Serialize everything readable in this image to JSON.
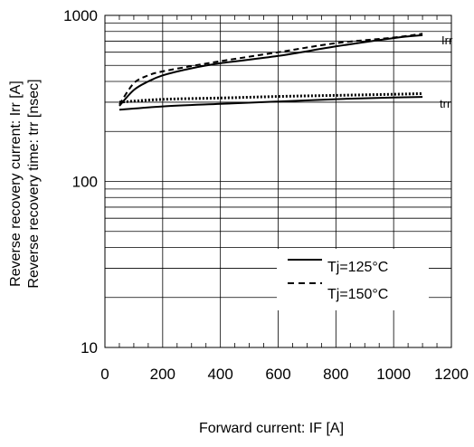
{
  "chart_data": {
    "type": "line",
    "xlabel": "Forward current: IF [A]",
    "ylabel_line1": "Reverse recovery current: Irr [A]",
    "ylabel_line2": "Reverse recovery time: trr [nsec]",
    "x_range": [
      0,
      1200
    ],
    "x_ticks": [
      0,
      200,
      400,
      600,
      800,
      1000,
      1200
    ],
    "x_tick_labels": [
      "0",
      "200",
      "400",
      "600",
      "800",
      "1000",
      "1200"
    ],
    "y_scale": "log",
    "y_range": [
      10,
      1000
    ],
    "y_ticks": [
      10,
      100,
      1000
    ],
    "y_tick_labels": [
      "10",
      "100",
      "1000"
    ],
    "grid": true,
    "legend_position": "lower-right",
    "legend": [
      {
        "label": "Tj=125°C",
        "style": "solid"
      },
      {
        "label": "Tj=150°C",
        "style": "dashed"
      }
    ],
    "curve_labels": {
      "irr": "Irr",
      "trr": "trr"
    },
    "series": [
      {
        "group": "Irr",
        "style": "solid",
        "temp": "125",
        "x": [
          50,
          100,
          150,
          200,
          300,
          400,
          600,
          800,
          1000,
          1100
        ],
        "y": [
          285,
          355,
          400,
          435,
          480,
          515,
          570,
          650,
          730,
          760
        ]
      },
      {
        "group": "Irr",
        "style": "dashed",
        "temp": "150",
        "x": [
          50,
          100,
          150,
          200,
          300,
          400,
          600,
          800,
          1000,
          1100
        ],
        "y": [
          290,
          390,
          435,
          460,
          495,
          530,
          600,
          680,
          735,
          775
        ]
      },
      {
        "group": "trr",
        "style": "solid",
        "temp": "125",
        "x": [
          50,
          200,
          400,
          600,
          800,
          1000,
          1100
        ],
        "y": [
          270,
          283,
          293,
          303,
          313,
          320,
          323
        ]
      },
      {
        "group": "trr",
        "style": "dashed",
        "temp": "150",
        "x": [
          50,
          200,
          400,
          600,
          800,
          1000,
          1100
        ],
        "y": [
          300,
          312,
          318,
          325,
          330,
          335,
          338
        ]
      }
    ]
  }
}
